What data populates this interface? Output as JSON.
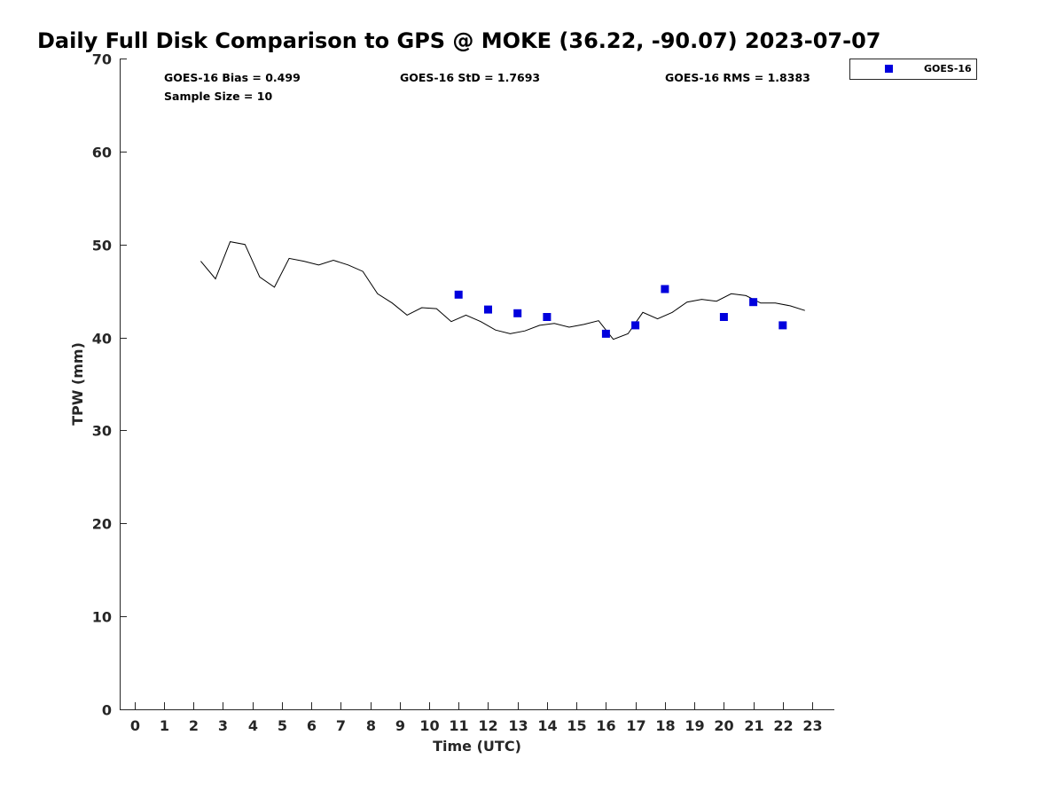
{
  "chart_data": {
    "type": "scatter",
    "title": "Daily Full Disk Comparison to GPS @ MOKE (36.22, -90.07) 2023-07-07",
    "xlabel": "Time (UTC)",
    "ylabel": "TPW (mm)",
    "xlim": [
      -0.5,
      23.75
    ],
    "ylim": [
      0,
      70
    ],
    "x_ticks": [
      "0",
      "1",
      "2",
      "3",
      "4",
      "5",
      "6",
      "7",
      "8",
      "9",
      "10",
      "11",
      "12",
      "13",
      "14",
      "15",
      "16",
      "17",
      "18",
      "19",
      "20",
      "21",
      "22",
      "23"
    ],
    "y_ticks": [
      "0",
      "10",
      "20",
      "30",
      "40",
      "50",
      "60",
      "70"
    ],
    "grid": false,
    "legend_position": "outside-top-right",
    "colors": {
      "goes16": "#0000dd",
      "gps_line": "#000000",
      "axis": "#262626"
    },
    "stats": {
      "bias": "GOES-16 Bias = 0.499",
      "std": "GOES-16 StD = 1.7693",
      "rms": "GOES-16 RMS = 1.8383",
      "sample_size": "Sample Size = 10"
    },
    "series": [
      {
        "name": "GOES-16",
        "type": "scatter",
        "x": [
          11,
          12,
          13,
          14,
          16,
          17,
          18,
          20,
          21,
          22
        ],
        "y": [
          44.6,
          43.0,
          42.6,
          42.2,
          40.4,
          41.3,
          45.2,
          42.2,
          43.8,
          41.3
        ]
      },
      {
        "type": "line",
        "x": [
          2.25,
          2.75,
          3.25,
          3.75,
          4.25,
          4.75,
          5.25,
          5.75,
          6.25,
          6.75,
          7.25,
          7.75,
          8.25,
          8.75,
          9.25,
          9.75,
          10.25,
          10.75,
          11.25,
          11.75,
          12.25,
          12.75,
          13.25,
          13.75,
          14.25,
          14.75,
          15.25,
          15.75,
          16.25,
          16.75,
          17.25,
          17.75,
          18.25,
          18.75,
          19.25,
          19.75,
          20.25,
          20.75,
          21.25,
          21.75,
          22.25,
          22.75
        ],
        "y": [
          48.2,
          46.3,
          50.3,
          50.0,
          46.5,
          45.4,
          48.5,
          48.2,
          47.8,
          48.3,
          47.8,
          47.1,
          44.7,
          43.7,
          42.4,
          43.2,
          43.1,
          41.7,
          42.4,
          41.7,
          40.8,
          40.4,
          40.7,
          41.3,
          41.5,
          41.1,
          41.4,
          41.8,
          39.8,
          40.4,
          42.7,
          42.0,
          42.7,
          43.8,
          44.1,
          43.9,
          44.7,
          44.5,
          43.7,
          43.7,
          43.4,
          42.9
        ]
      }
    ]
  }
}
